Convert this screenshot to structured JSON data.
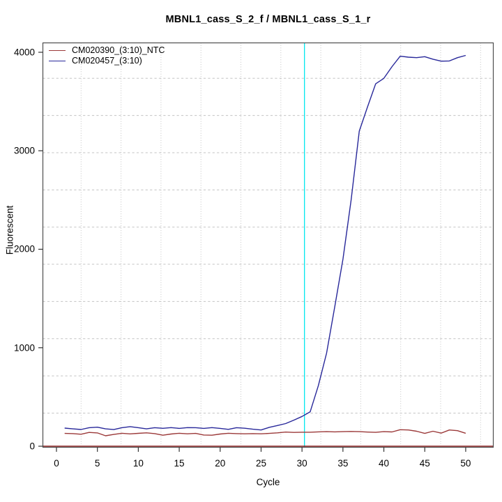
{
  "chart_data": {
    "type": "line",
    "title": "MBNL1_cass_S_2_f / MBNL1_cass_S_1_r",
    "xlabel": "Cycle",
    "ylabel": "Fluorescent",
    "x_ticks": [
      0,
      5,
      10,
      15,
      20,
      25,
      30,
      35,
      40,
      45,
      50
    ],
    "y_ticks": [
      0,
      1000,
      2000,
      3000,
      4000
    ],
    "xlim": [
      -1.66,
      53.37
    ],
    "ylim": [
      -10.6,
      4095.4
    ],
    "grid": true,
    "legend_position": "top-left",
    "x": [
      1,
      2,
      3,
      4,
      5,
      6,
      7,
      8,
      9,
      10,
      11,
      12,
      13,
      14,
      15,
      16,
      17,
      18,
      19,
      20,
      21,
      22,
      23,
      24,
      25,
      26,
      27,
      28,
      29,
      30,
      31,
      32,
      33,
      34,
      35,
      36,
      37,
      38,
      39,
      40,
      41,
      42,
      43,
      44,
      45,
      46,
      47,
      48,
      49,
      50
    ],
    "series": [
      {
        "name": "CM020390_(3:10)_NTC",
        "color": "#9b3939",
        "values": [
          130,
          128,
          122,
          140,
          135,
          106,
          120,
          132,
          125,
          131,
          136,
          128,
          112,
          124,
          132,
          126,
          130,
          114,
          112,
          124,
          132,
          128,
          126,
          128,
          126,
          130,
          136,
          144,
          140,
          142,
          142,
          146,
          148,
          146,
          148,
          150,
          148,
          144,
          141,
          148,
          145,
          168,
          165,
          152,
          130,
          152,
          133,
          165,
          158,
          132
        ]
      },
      {
        "name": "CM020457_(3:10)",
        "color": "#28289a",
        "values": [
          184,
          176,
          170,
          188,
          193,
          176,
          169,
          188,
          199,
          188,
          176,
          188,
          182,
          189,
          181,
          189,
          188,
          181,
          189,
          181,
          171,
          188,
          183,
          173,
          165,
          192,
          210,
          230,
          265,
          302,
          350,
          615,
          945,
          1415,
          1900,
          2500,
          3200,
          3445,
          3680,
          3735,
          3855,
          3960,
          3950,
          3945,
          3955,
          3930,
          3910,
          3912,
          3945,
          3968
        ]
      }
    ],
    "threshold_line": {
      "x": 30.3,
      "color": "#00e8ee"
    },
    "baseline": {
      "y": 0,
      "color": "#8b2020"
    },
    "grid_color": "#c3c3c3",
    "box_color": "#4d4d4d"
  }
}
